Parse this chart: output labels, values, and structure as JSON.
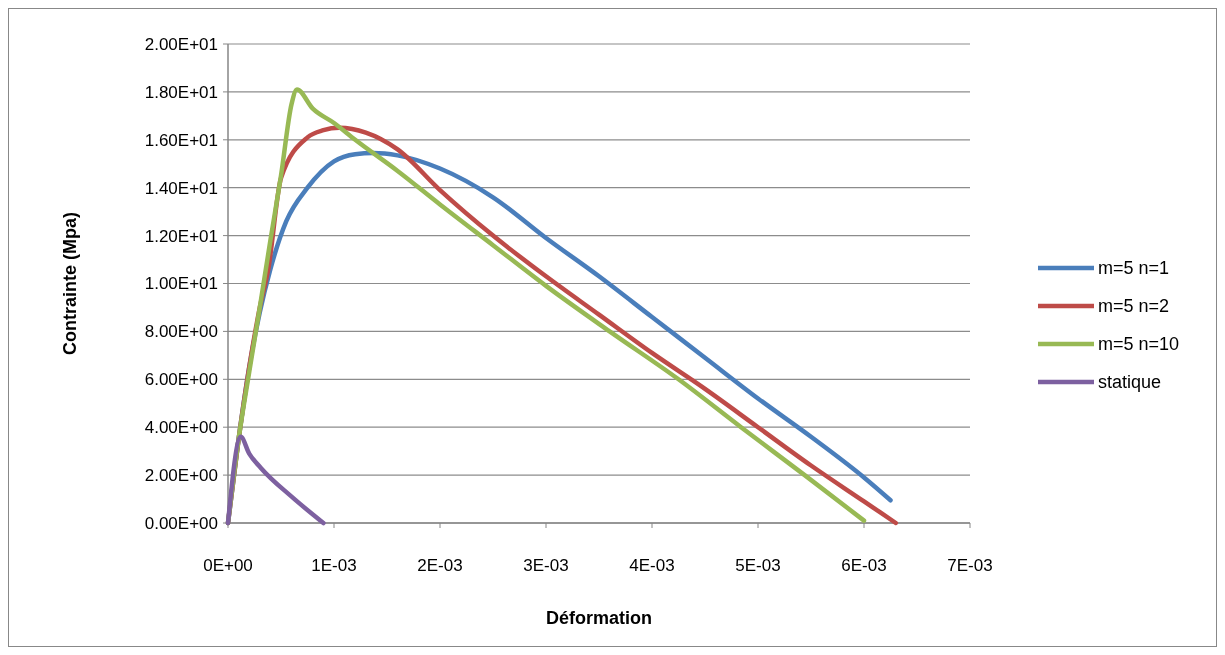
{
  "chart_data": {
    "type": "line",
    "xlabel": "Déformation",
    "ylabel": "Contrainte (Mpa)",
    "xlim": [
      0,
      0.007
    ],
    "ylim": [
      0,
      20
    ],
    "xticks": [
      {
        "value": 0,
        "label": "0E+00"
      },
      {
        "value": 0.001,
        "label": "1E-03"
      },
      {
        "value": 0.002,
        "label": "2E-03"
      },
      {
        "value": 0.003,
        "label": "3E-03"
      },
      {
        "value": 0.004,
        "label": "4E-03"
      },
      {
        "value": 0.005,
        "label": "5E-03"
      },
      {
        "value": 0.006,
        "label": "6E-03"
      },
      {
        "value": 0.007,
        "label": "7E-03"
      }
    ],
    "yticks": [
      {
        "value": 0,
        "label": "0.00E+00"
      },
      {
        "value": 2,
        "label": "2.00E+00"
      },
      {
        "value": 4,
        "label": "4.00E+00"
      },
      {
        "value": 6,
        "label": "6.00E+00"
      },
      {
        "value": 8,
        "label": "8.00E+00"
      },
      {
        "value": 10,
        "label": "1.00E+01"
      },
      {
        "value": 12,
        "label": "1.20E+01"
      },
      {
        "value": 14,
        "label": "1.40E+01"
      },
      {
        "value": 16,
        "label": "1.60E+01"
      },
      {
        "value": 18,
        "label": "1.80E+01"
      },
      {
        "value": 20,
        "label": "2.00E+01"
      }
    ],
    "grid": "y",
    "legend": "right",
    "marker": "none",
    "line_style": "solid",
    "series": [
      {
        "name": "m=5 n=1",
        "color": "#4a7ebb",
        "x": [
          0,
          0.0001,
          0.0002,
          0.0003,
          0.0004,
          0.00055,
          0.00075,
          0.001,
          0.0012,
          0.00137,
          0.0016,
          0.002,
          0.0025,
          0.003,
          0.0035,
          0.004,
          0.0045,
          0.005,
          0.0055,
          0.006,
          0.00625
        ],
        "values": [
          0,
          3.5,
          6.5,
          8.8,
          10.6,
          12.6,
          14.0,
          15.1,
          15.4,
          15.45,
          15.35,
          14.8,
          13.6,
          11.9,
          10.3,
          8.6,
          6.9,
          5.2,
          3.6,
          1.9,
          0.95
        ]
      },
      {
        "name": "m=5 n=2",
        "color": "#be4b48",
        "x": [
          0,
          0.0001,
          0.0002,
          0.0003,
          0.00038,
          0.0005,
          0.00075,
          0.0009,
          0.00105,
          0.0013,
          0.0016,
          0.002,
          0.0025,
          0.003,
          0.0035,
          0.004,
          0.0045,
          0.005,
          0.0055,
          0.006,
          0.0063
        ],
        "values": [
          0,
          3.5,
          6.5,
          9.0,
          10.6,
          14.4,
          16.1,
          16.4,
          16.5,
          16.3,
          15.6,
          13.9,
          12.0,
          10.3,
          8.7,
          7.1,
          5.6,
          4.0,
          2.4,
          0.9,
          0
        ]
      },
      {
        "name": "m=5 n=10",
        "color": "#98b954",
        "x": [
          0,
          0.0001,
          0.0002,
          0.0003,
          0.0004,
          0.0005,
          0.0006,
          0.00065,
          0.0008,
          0.001,
          0.0012,
          0.0016,
          0.002,
          0.0025,
          0.003,
          0.0036,
          0.00425,
          0.00484,
          0.00544,
          0.006
        ],
        "values": [
          0,
          3.5,
          6.3,
          9.0,
          11.8,
          14.5,
          17.5,
          18.1,
          17.3,
          16.7,
          16.0,
          14.7,
          13.3,
          11.6,
          9.9,
          8.0,
          6.0,
          4.0,
          2.0,
          0.1
        ]
      },
      {
        "name": "statique",
        "color": "#7d60a0",
        "x": [
          0,
          0.00012,
          0.0002,
          0.00031,
          0.0006,
          0.0009
        ],
        "values": [
          0,
          3.6,
          2.9,
          2.3,
          1.1,
          0
        ]
      }
    ]
  }
}
